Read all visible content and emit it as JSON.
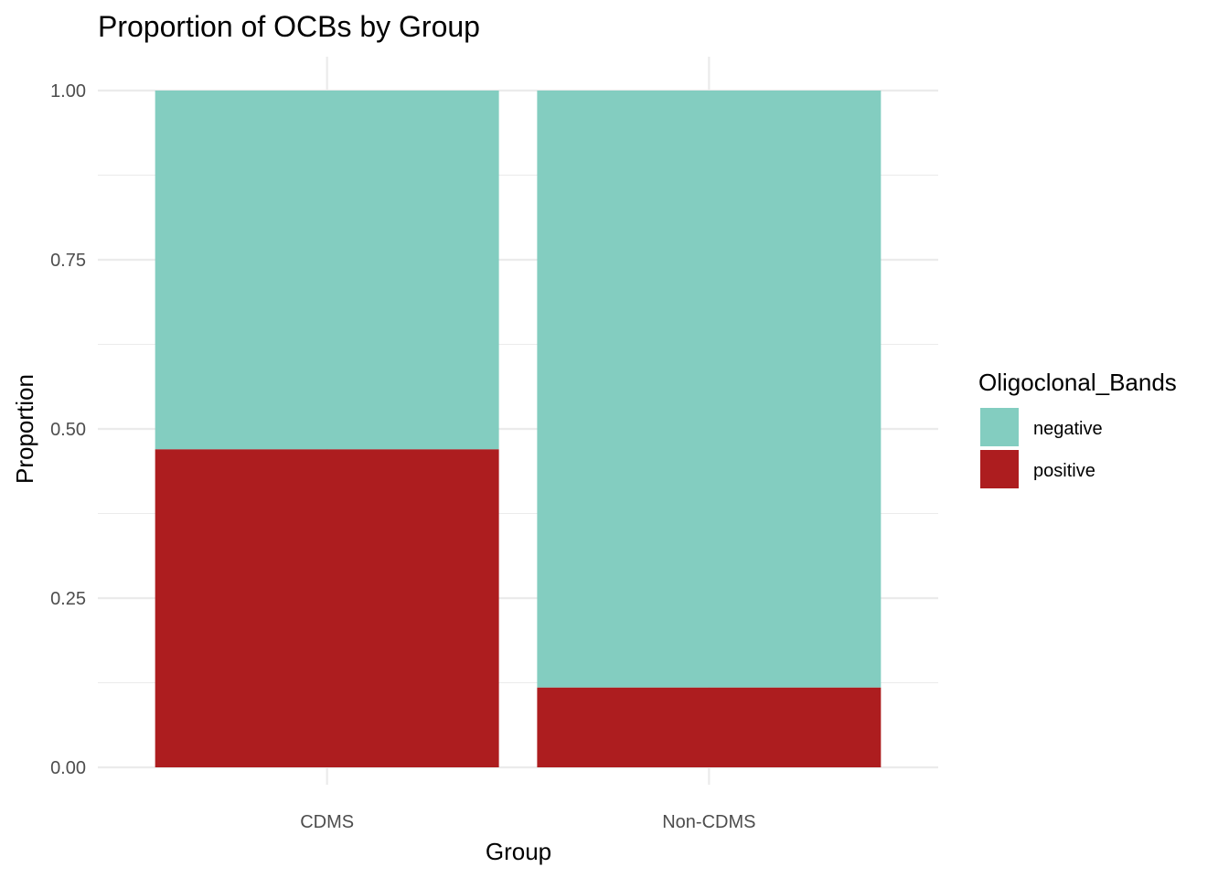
{
  "chart_data": {
    "type": "bar",
    "stacked": true,
    "title": "Proportion of OCBs by Group",
    "xlabel": "Group",
    "ylabel": "Proportion",
    "categories": [
      "CDMS",
      "Non-CDMS"
    ],
    "series": [
      {
        "name": "positive",
        "color": "#AD1D1F",
        "values": [
          0.47,
          0.118
        ]
      },
      {
        "name": "negative",
        "color": "#83CDC0",
        "values": [
          0.53,
          0.882
        ]
      }
    ],
    "ylim": [
      0,
      1
    ],
    "yticks": [
      0,
      0.25,
      0.5,
      0.75,
      1
    ],
    "ytick_labels": [
      "0.00",
      "0.25",
      "0.50",
      "0.75",
      "1.00"
    ],
    "grid": true,
    "legend": {
      "title": "Oligoclonal_Bands",
      "position": "right",
      "entries": [
        {
          "label": "negative",
          "color": "#83CDC0"
        },
        {
          "label": "positive",
          "color": "#AD1D1F"
        }
      ]
    }
  }
}
